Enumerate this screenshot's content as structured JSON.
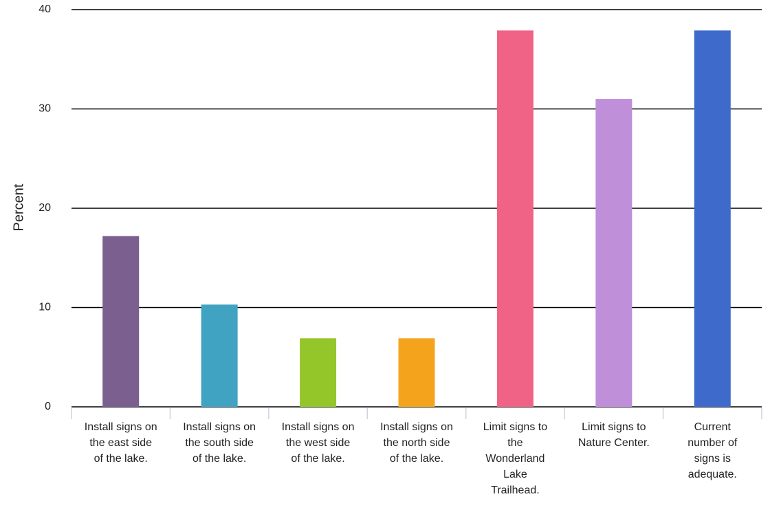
{
  "chart_data": {
    "type": "bar",
    "title": "",
    "xlabel": "",
    "ylabel": "Percent",
    "ylim": [
      0,
      40
    ],
    "yticks": [
      0,
      10,
      20,
      30,
      40
    ],
    "grid": true,
    "categories": [
      "Install signs on the east side of the lake.",
      "Install signs on the south side of the lake.",
      "Install signs on the west side of the lake.",
      "Install signs on the north side of the lake.",
      "Limit signs to the Wonderland Lake Trailhead.",
      "Limit signs to Nature Center.",
      "Current number of signs is adequate."
    ],
    "category_lines": [
      [
        "Install signs on",
        "the east side",
        "of the lake."
      ],
      [
        "Install signs on",
        "the south side",
        "of the lake."
      ],
      [
        "Install signs on",
        "the west side",
        "of the lake."
      ],
      [
        "Install signs on",
        "the north side",
        "of the lake."
      ],
      [
        "Limit signs to",
        "the",
        "Wonderland",
        "Lake",
        "Trailhead."
      ],
      [
        "Limit signs to",
        "Nature Center."
      ],
      [
        "Current",
        "number of",
        "signs is",
        "adequate."
      ]
    ],
    "values": [
      17.2,
      10.3,
      6.9,
      6.9,
      37.9,
      31.0,
      37.9
    ],
    "colors": [
      "#7b5f8e",
      "#41a3c2",
      "#94c529",
      "#f4a41c",
      "#f06386",
      "#bf8fda",
      "#3e6bcb"
    ]
  }
}
